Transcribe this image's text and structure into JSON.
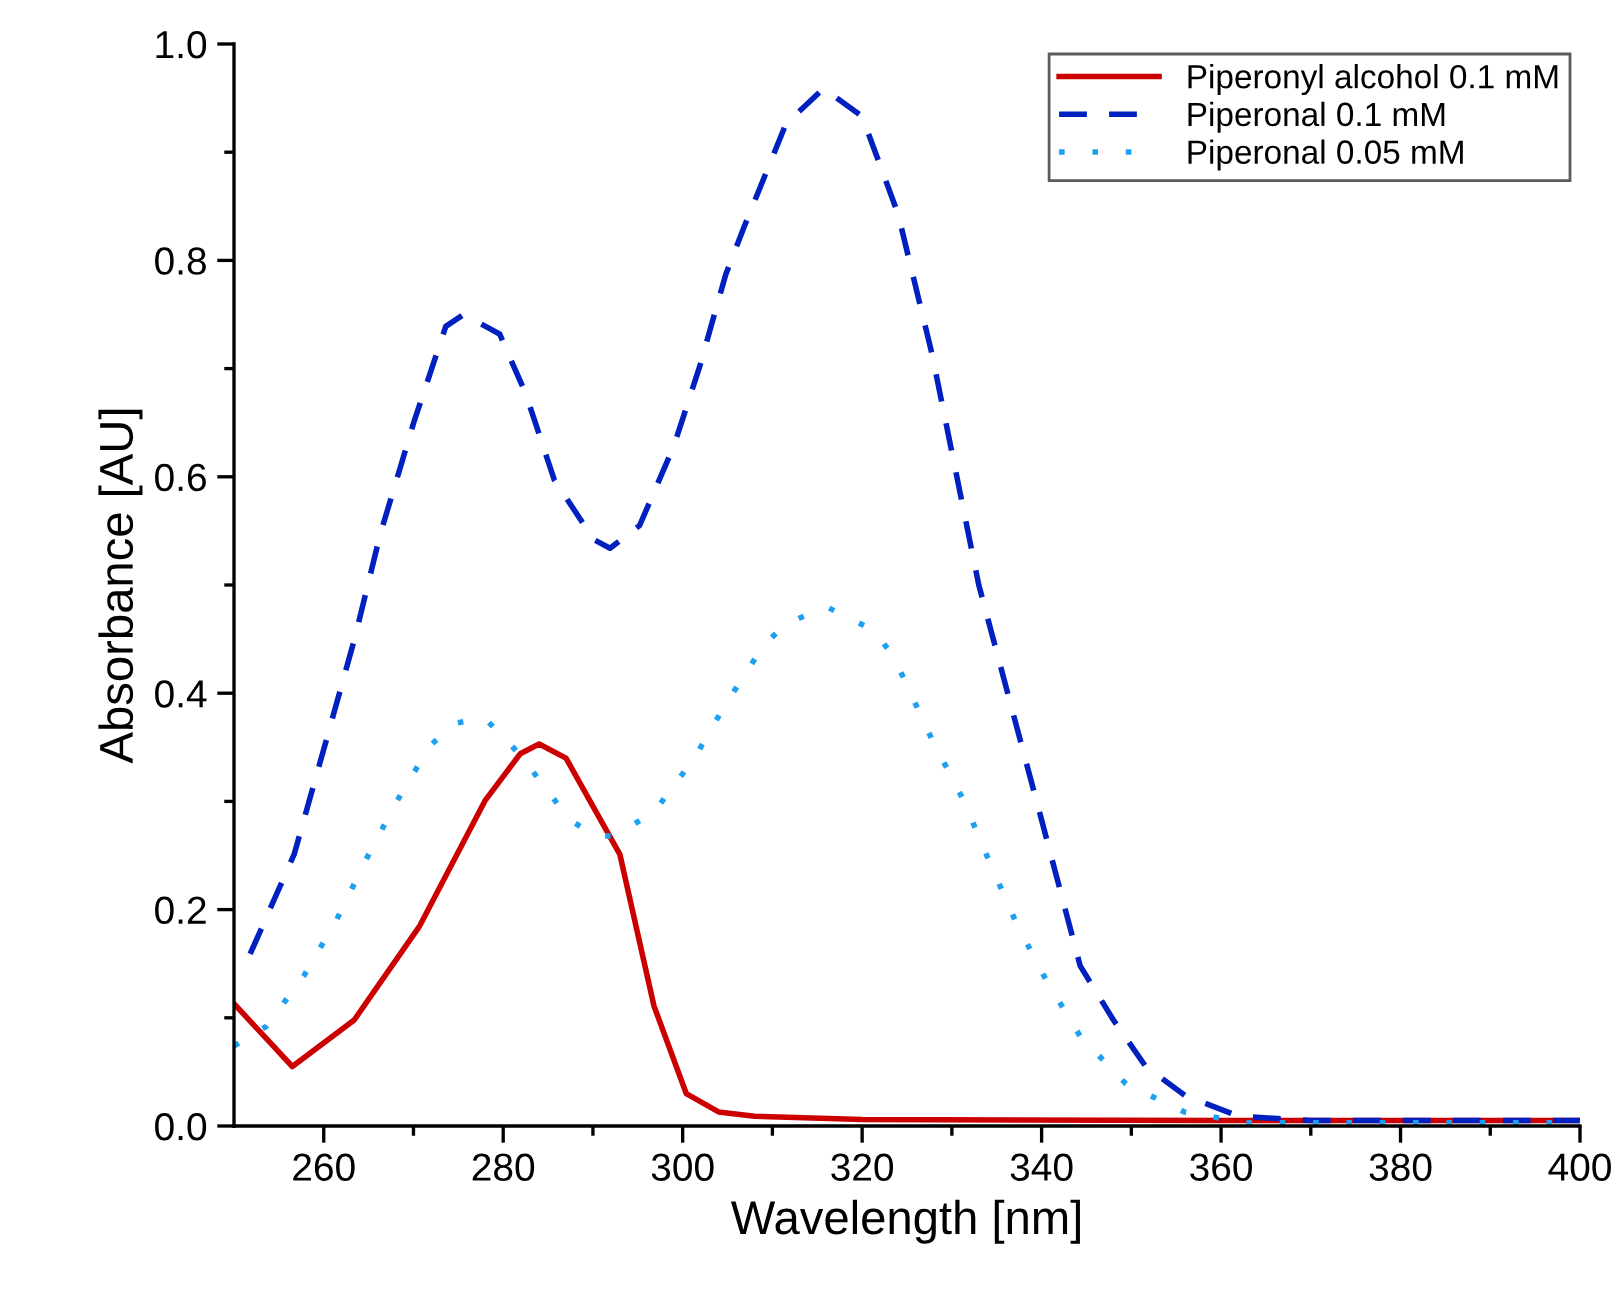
{
  "chart_data": {
    "type": "line",
    "xlabel": "Wavelength [nm]",
    "ylabel": "Absorbance [AU]",
    "xlim": [
      250,
      400
    ],
    "ylim": [
      0,
      1.0
    ],
    "xticks": [
      260,
      280,
      300,
      320,
      340,
      360,
      380,
      400
    ],
    "yticks": [
      {
        "value": 0,
        "label": "0.0"
      },
      0.2,
      0.4,
      0.6,
      0.8,
      {
        "value": 1,
        "label": "1.0"
      }
    ],
    "grid": false,
    "legend": "top right",
    "series": [
      {
        "name": "Piperonyl alcohol 0.1 mM",
        "color": "#cc0000",
        "line_style": "solid",
        "x": [
          250,
          256.5,
          263.4,
          270.7,
          278,
          281.9,
          284,
          287,
          293,
          296.8,
          300.4,
          304,
          308,
          320,
          360,
          400
        ],
        "values": [
          0.113,
          0.055,
          0.098,
          0.185,
          0.301,
          0.344,
          0.353,
          0.34,
          0.251,
          0.111,
          0.03,
          0.013,
          0.009,
          0.006,
          0.005,
          0.005
        ]
      },
      {
        "name": "Piperonal 0.1 mM",
        "color": "#0020c0",
        "line_style": "dashed",
        "x": [
          251.8,
          256.7,
          260.3,
          263.4,
          266.3,
          270.1,
          273.6,
          275.6,
          279.6,
          282.5,
          285.7,
          290.1,
          291.9,
          295.2,
          299,
          301.9,
          304.8,
          306.8,
          311.5,
          315.7,
          320,
          324,
          327.8,
          333,
          339.8,
          344.3,
          348,
          351.6,
          356,
          362,
          370,
          400
        ],
        "values": [
          0.159,
          0.251,
          0.357,
          0.449,
          0.547,
          0.652,
          0.739,
          0.75,
          0.732,
          0.677,
          0.597,
          0.542,
          0.534,
          0.555,
          0.628,
          0.702,
          0.787,
          0.83,
          0.926,
          0.959,
          0.933,
          0.843,
          0.713,
          0.5,
          0.289,
          0.148,
          0.098,
          0.055,
          0.028,
          0.009,
          0.005,
          0.005
        ]
      },
      {
        "name": "Piperonal 0.05 mM",
        "color": "#1ea0f0",
        "line_style": "dotted",
        "x": [
          250,
          253.6,
          257.8,
          261.4,
          264.7,
          268,
          271.8,
          274.5,
          277.9,
          280.8,
          283,
          285.2,
          287.4,
          290.3,
          292.3,
          296.8,
          301.3,
          304.8,
          309,
          311.5,
          316,
          321.3,
          323.5,
          327.8,
          331.3,
          334.2,
          337.1,
          340.5,
          344.3,
          349.4,
          355.9,
          362.8,
          400
        ],
        "values": [
          0.074,
          0.092,
          0.139,
          0.19,
          0.246,
          0.298,
          0.351,
          0.372,
          0.377,
          0.353,
          0.331,
          0.307,
          0.283,
          0.268,
          0.268,
          0.29,
          0.34,
          0.39,
          0.444,
          0.464,
          0.48,
          0.458,
          0.434,
          0.357,
          0.301,
          0.244,
          0.189,
          0.135,
          0.083,
          0.039,
          0.013,
          0.003,
          0.003
        ]
      }
    ]
  }
}
